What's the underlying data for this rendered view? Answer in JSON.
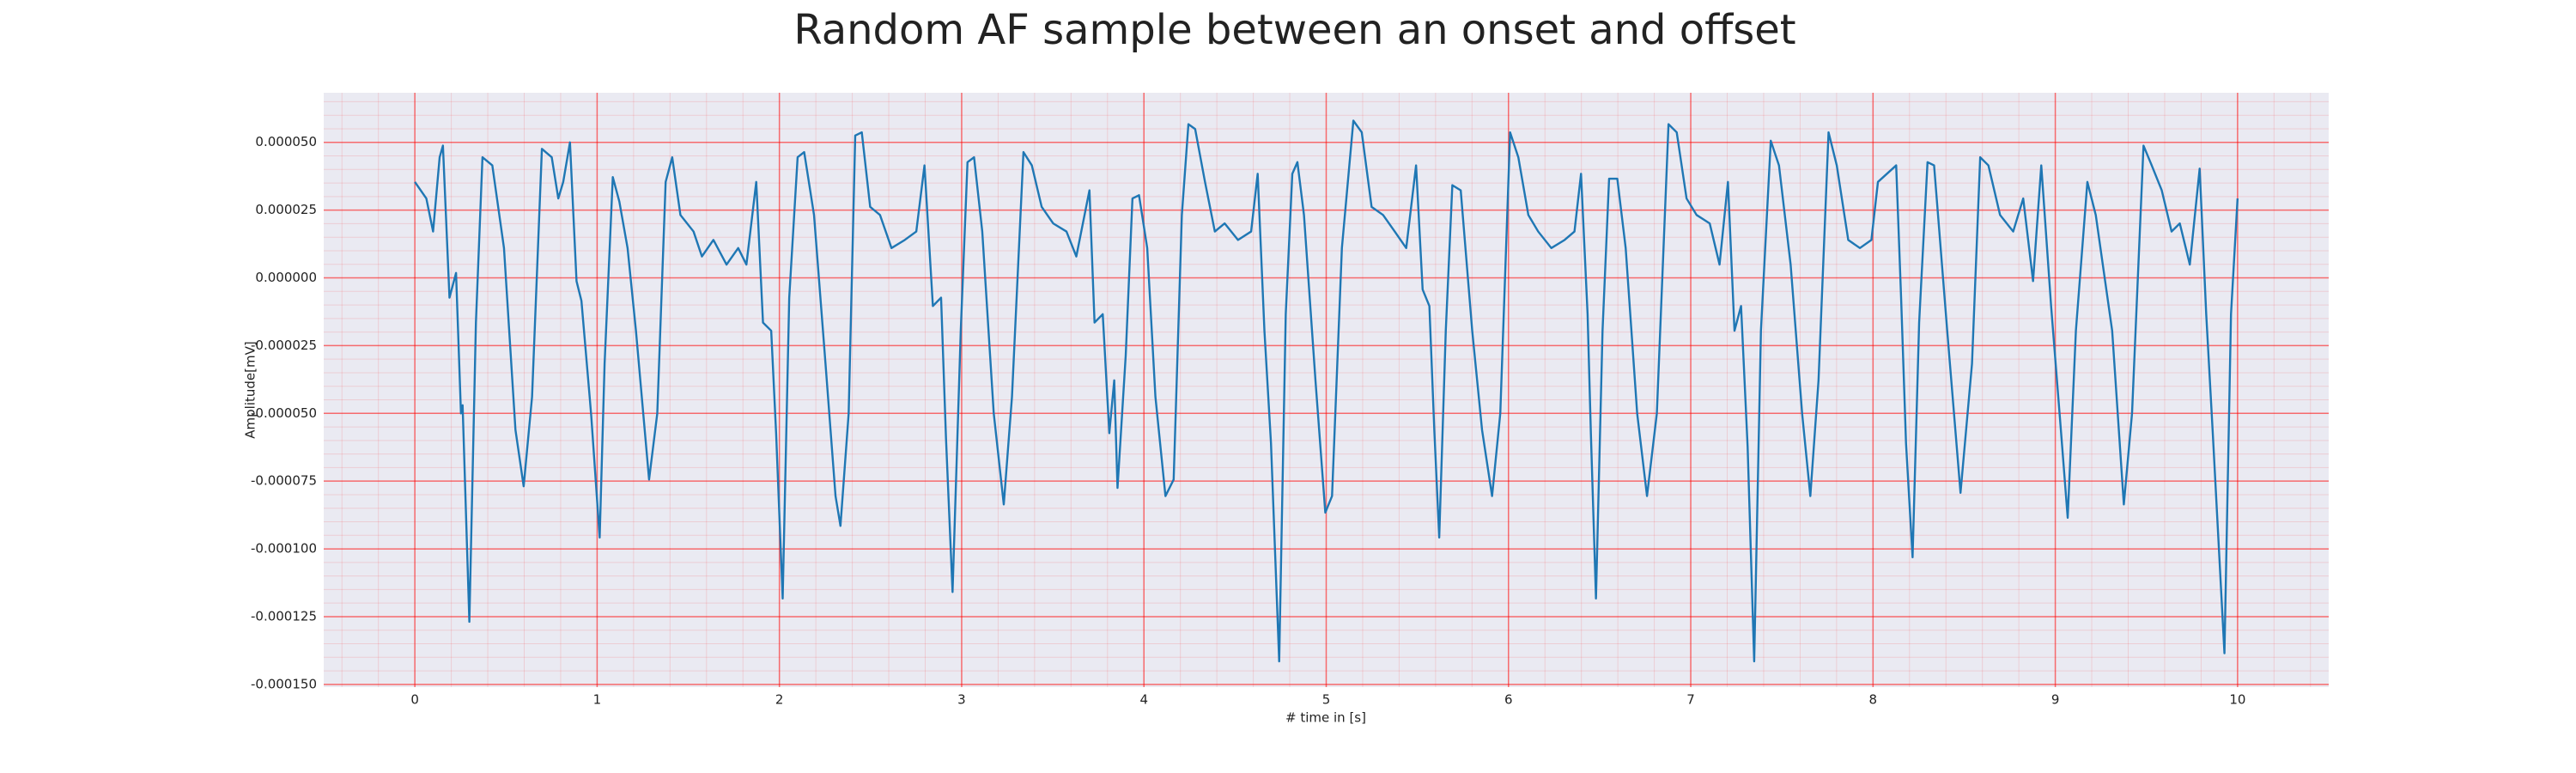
{
  "chart_data": {
    "type": "line",
    "title": "Random AF sample between an onset and offset",
    "xlabel": "# time in [s]",
    "ylabel": "Amplitude[mV]",
    "xlim": [
      -0.5,
      10.5
    ],
    "ylim": [
      -0.000151,
      6.83e-05
    ],
    "xticks": [
      0,
      1,
      2,
      3,
      4,
      5,
      6,
      7,
      8,
      9,
      10
    ],
    "yticks": [
      {
        "value": -0.00015,
        "label": "-0.000150"
      },
      {
        "value": -0.000125,
        "label": "-0.000125"
      },
      {
        "value": -0.0001,
        "label": "-0.000100"
      },
      {
        "value": -7.5e-05,
        "label": "-0.000075"
      },
      {
        "value": -5e-05,
        "label": "-0.000050"
      },
      {
        "value": -2.5e-05,
        "label": "-0.000025"
      },
      {
        "value": 0,
        "label": "0.000000"
      },
      {
        "value": 2.5e-05,
        "label": "0.000025"
      },
      {
        "value": 5e-05,
        "label": "0.000050"
      }
    ],
    "grid": true,
    "grid_color": "#ff0000",
    "minor_divisions": 5,
    "background": "#eaeaf2",
    "series": [
      {
        "color": "#1f77b4",
        "x": [
          0,
          0.063,
          0.1,
          0.136,
          0.154,
          0.19,
          0.226,
          0.253,
          0.262,
          0.299,
          0.335,
          0.371,
          0.425,
          0.489,
          0.552,
          0.597,
          0.643,
          0.697,
          0.751,
          0.787,
          0.814,
          0.851,
          0.887,
          0.914,
          0.959,
          0.968,
          1.014,
          1.041,
          1.086,
          1.122,
          1.167,
          1.213,
          1.285,
          1.33,
          1.376,
          1.412,
          1.457,
          1.529,
          1.575,
          1.638,
          1.71,
          1.774,
          1.819,
          1.873,
          1.91,
          1.955,
          1.982,
          2.018,
          2.054,
          2.1,
          2.136,
          2.19,
          2.253,
          2.308,
          2.335,
          2.38,
          2.416,
          2.452,
          2.498,
          2.552,
          2.615,
          2.688,
          2.751,
          2.796,
          2.842,
          2.887,
          2.914,
          2.95,
          2.995,
          3.032,
          3.068,
          3.113,
          3.176,
          3.231,
          3.276,
          3.339,
          3.385,
          3.439,
          3.502,
          3.575,
          3.629,
          3.701,
          3.729,
          3.774,
          3.81,
          3.837,
          3.855,
          3.9,
          3.937,
          3.973,
          4.018,
          4.063,
          4.118,
          4.163,
          4.208,
          4.244,
          4.281,
          4.335,
          4.389,
          4.443,
          4.516,
          4.588,
          4.624,
          4.661,
          4.697,
          4.742,
          4.778,
          4.814,
          4.842,
          4.878,
          4.941,
          4.995,
          5.032,
          5.086,
          5.149,
          5.195,
          5.249,
          5.312,
          5.376,
          5.439,
          5.493,
          5.529,
          5.566,
          5.593,
          5.62,
          5.656,
          5.692,
          5.738,
          5.801,
          5.855,
          5.91,
          5.955,
          6.009,
          6.054,
          6.109,
          6.163,
          6.235,
          6.308,
          6.362,
          6.398,
          6.434,
          6.452,
          6.48,
          6.516,
          6.552,
          6.597,
          6.643,
          6.706,
          6.76,
          6.814,
          6.878,
          6.923,
          6.977,
          7.032,
          7.104,
          7.158,
          7.204,
          7.24,
          7.276,
          7.312,
          7.348,
          7.385,
          7.439,
          7.484,
          7.548,
          7.611,
          7.656,
          7.701,
          7.756,
          7.801,
          7.864,
          7.928,
          7.991,
          8.027,
          8.127,
          8.154,
          8.181,
          8.217,
          8.253,
          8.299,
          8.335,
          8.407,
          8.48,
          8.543,
          8.588,
          8.633,
          8.697,
          8.769,
          8.824,
          8.878,
          8.923,
          8.977,
          9.032,
          9.068,
          9.113,
          9.176,
          9.222,
          9.312,
          9.376,
          9.421,
          9.484,
          9.529,
          9.584,
          9.638,
          9.683,
          9.738,
          9.792,
          9.828,
          9.864,
          9.928,
          9.964,
          10.0
        ],
        "values": [
          3.54e-05,
          2.93e-05,
          1.71e-05,
          4.45e-05,
          4.88e-05,
          -7.3e-06,
          1.8e-06,
          -5e-05,
          -4.7e-05,
          -0.0001269,
          -1.65e-05,
          4.45e-05,
          4.15e-05,
          1.1e-05,
          -5.61e-05,
          -7.69e-05,
          -4.39e-05,
          4.76e-05,
          4.45e-05,
          2.93e-05,
          3.54e-05,
          5e-05,
          -1.2e-06,
          -8.5e-06,
          -4.39e-05,
          -5.12e-05,
          -9.58e-05,
          -3.17e-05,
          3.72e-05,
          2.81e-05,
          1.1e-05,
          -1.95e-05,
          -7.44e-05,
          -5e-05,
          3.54e-05,
          4.45e-05,
          2.32e-05,
          1.71e-05,
          7.9e-06,
          1.4e-05,
          4.9e-06,
          1.1e-05,
          4.9e-06,
          3.54e-05,
          -1.65e-05,
          -1.95e-05,
          -5.73e-05,
          -0.0001183,
          -7.3e-06,
          4.45e-05,
          4.64e-05,
          2.32e-05,
          -3.17e-05,
          -8.05e-05,
          -9.15e-05,
          -5e-05,
          5.25e-05,
          5.37e-05,
          2.62e-05,
          2.32e-05,
          1.1e-05,
          1.4e-05,
          1.71e-05,
          4.15e-05,
          -1.04e-05,
          -7.3e-06,
          -5.92e-05,
          -0.0001159,
          -1.95e-05,
          4.27e-05,
          4.45e-05,
          1.71e-05,
          -5e-05,
          -8.36e-05,
          -4.39e-05,
          4.64e-05,
          4.15e-05,
          2.62e-05,
          2.01e-05,
          1.71e-05,
          7.9e-06,
          3.23e-05,
          -1.65e-05,
          -1.34e-05,
          -5.73e-05,
          -3.78e-05,
          -7.75e-05,
          -2.87e-05,
          2.93e-05,
          3.05e-05,
          1.1e-05,
          -4.39e-05,
          -8.05e-05,
          -7.44e-05,
          2.32e-05,
          5.67e-05,
          5.49e-05,
          3.54e-05,
          1.71e-05,
          2.01e-05,
          1.4e-05,
          1.71e-05,
          3.84e-05,
          -1.95e-05,
          -6.1e-05,
          -0.0001415,
          -1.34e-05,
          3.84e-05,
          4.27e-05,
          2.32e-05,
          -3.78e-05,
          -8.66e-05,
          -8.05e-05,
          1.1e-05,
          5.8e-05,
          5.37e-05,
          2.62e-05,
          2.32e-05,
          1.71e-05,
          1.1e-05,
          4.15e-05,
          -4.3e-06,
          -1.04e-05,
          -5.61e-05,
          -9.58e-05,
          -1.95e-05,
          3.42e-05,
          3.23e-05,
          -1.95e-05,
          -5.61e-05,
          -8.05e-05,
          -5e-05,
          5.37e-05,
          4.45e-05,
          2.32e-05,
          1.71e-05,
          1.1e-05,
          1.4e-05,
          1.71e-05,
          3.84e-05,
          -1.34e-05,
          -5.73e-05,
          -0.0001183,
          -1.95e-05,
          3.66e-05,
          3.66e-05,
          1.1e-05,
          -5e-05,
          -8.05e-05,
          -5e-05,
          5.67e-05,
          5.37e-05,
          2.93e-05,
          2.32e-05,
          2.01e-05,
          4.9e-06,
          3.54e-05,
          -1.95e-05,
          -1.04e-05,
          -6.22e-05,
          -0.0001415,
          -1.95e-05,
          5.06e-05,
          4.15e-05,
          4.9e-06,
          -5e-05,
          -8.05e-05,
          -3.78e-05,
          5.37e-05,
          4.15e-05,
          1.4e-05,
          1.1e-05,
          1.4e-05,
          3.54e-05,
          4.15e-05,
          -7.3e-06,
          -6.1e-05,
          -0.0001031,
          -1.65e-05,
          4.27e-05,
          4.15e-05,
          -1.95e-05,
          -7.93e-05,
          -3.17e-05,
          4.45e-05,
          4.15e-05,
          2.32e-05,
          1.71e-05,
          2.93e-05,
          -1.2e-06,
          4.15e-05,
          -1.04e-05,
          -5.73e-05,
          -8.85e-05,
          -1.95e-05,
          3.54e-05,
          2.32e-05,
          -1.95e-05,
          -8.36e-05,
          -5e-05,
          4.88e-05,
          4.15e-05,
          3.23e-05,
          1.71e-05,
          2.01e-05,
          4.9e-06,
          4.03e-05,
          -1.34e-05,
          -5.73e-05,
          -0.0001385,
          -1.34e-05,
          2.93e-05
        ]
      }
    ]
  }
}
